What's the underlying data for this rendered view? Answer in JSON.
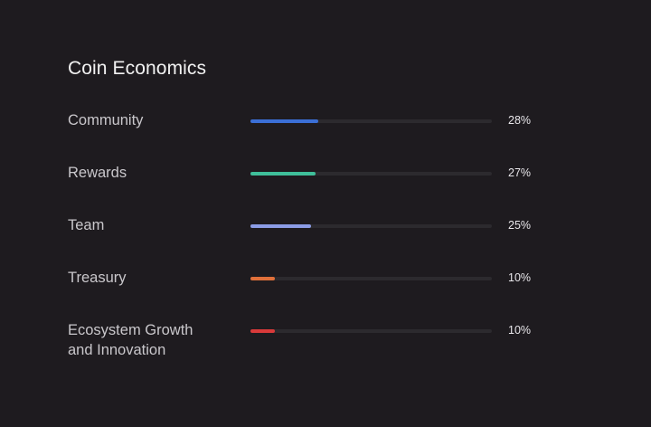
{
  "title": "Coin Economics",
  "allocations": [
    {
      "label": "Community",
      "percent_label": "28%",
      "percent": 28,
      "color": "#3b6fd6"
    },
    {
      "label": "Rewards",
      "percent_label": "27%",
      "percent": 27,
      "color": "#3fbf9a"
    },
    {
      "label": "Team",
      "percent_label": "25%",
      "percent": 25,
      "color": "#8c9ce6"
    },
    {
      "label": "Treasury",
      "percent_label": "10%",
      "percent": 10,
      "color": "#e0703a"
    },
    {
      "label": "Ecosystem Growth and Innovation",
      "percent_label": "10%",
      "percent": 10,
      "color": "#d93a3a"
    }
  ]
}
